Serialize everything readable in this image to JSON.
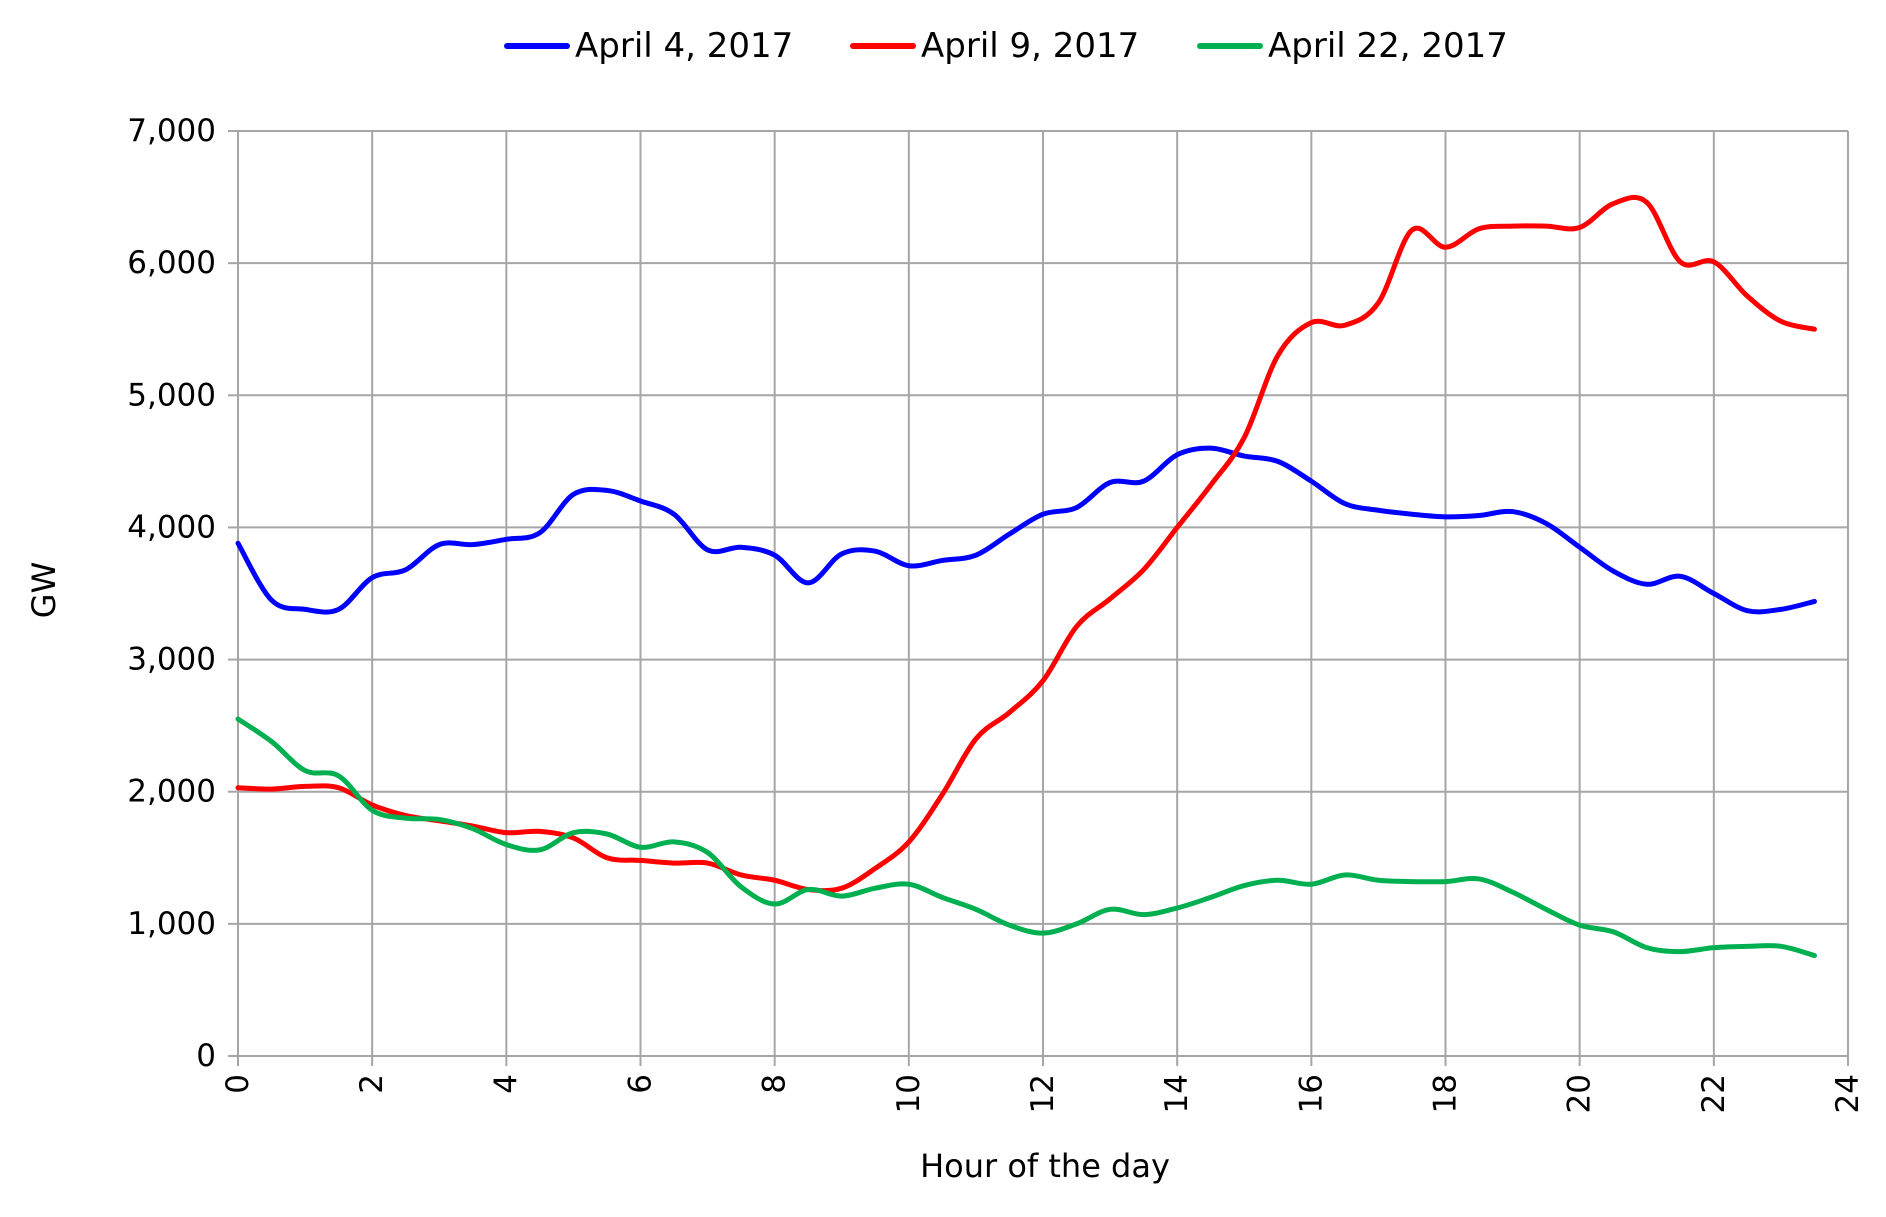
{
  "chart_data": {
    "type": "line",
    "title": "",
    "xlabel": "Hour of the day",
    "ylabel": "GW",
    "xlim": [
      0,
      24
    ],
    "ylim": [
      0,
      7000
    ],
    "x_ticks": [
      "0",
      "2",
      "4",
      "6",
      "8",
      "10",
      "12",
      "14",
      "16",
      "18",
      "20",
      "22",
      "24"
    ],
    "y_ticks": [
      "0",
      "1,000",
      "2,000",
      "3,000",
      "4,000",
      "5,000",
      "6,000",
      "7,000"
    ],
    "grid": true,
    "legend_position": "top",
    "x": [
      0,
      0.5,
      1,
      1.5,
      2,
      2.5,
      3,
      3.5,
      4,
      4.5,
      5,
      5.5,
      6,
      6.5,
      7,
      7.5,
      8,
      8.5,
      9,
      9.5,
      10,
      10.5,
      11,
      11.5,
      12,
      12.5,
      13,
      13.5,
      14,
      14.5,
      15,
      15.5,
      16,
      16.5,
      17,
      17.5,
      18,
      18.5,
      19,
      19.5,
      20,
      20.5,
      21,
      21.5,
      22,
      22.5,
      23,
      23.5
    ],
    "series": [
      {
        "name": "April 4, 2017",
        "color": "#0000ff",
        "values": [
          3880,
          3450,
          3380,
          3380,
          3620,
          3680,
          3870,
          3870,
          3910,
          3960,
          4250,
          4280,
          4200,
          4100,
          3830,
          3850,
          3790,
          3580,
          3800,
          3820,
          3710,
          3750,
          3790,
          3950,
          4100,
          4150,
          4340,
          4350,
          4550,
          4600,
          4540,
          4500,
          4350,
          4180,
          4130,
          4100,
          4080,
          4090,
          4120,
          4030,
          3850,
          3670,
          3570,
          3630,
          3500,
          3370,
          3380,
          3440
        ]
      },
      {
        "name": "April 9, 2017",
        "color": "#ff0000",
        "values": [
          2030,
          2020,
          2040,
          2030,
          1900,
          1820,
          1780,
          1740,
          1690,
          1700,
          1650,
          1500,
          1480,
          1460,
          1460,
          1370,
          1330,
          1260,
          1270,
          1420,
          1620,
          1980,
          2400,
          2600,
          2840,
          3250,
          3460,
          3680,
          4000,
          4320,
          4680,
          5300,
          5550,
          5530,
          5700,
          6250,
          6120,
          6260,
          6280,
          6280,
          6270,
          6450,
          6460,
          6010,
          6010,
          5750,
          5560,
          5500
        ]
      },
      {
        "name": "April 22, 2017",
        "color": "#00b050",
        "values": [
          2550,
          2380,
          2160,
          2120,
          1860,
          1800,
          1790,
          1720,
          1600,
          1560,
          1690,
          1680,
          1580,
          1620,
          1540,
          1280,
          1150,
          1260,
          1210,
          1270,
          1300,
          1200,
          1110,
          990,
          930,
          1000,
          1110,
          1070,
          1120,
          1200,
          1290,
          1330,
          1300,
          1370,
          1330,
          1320,
          1320,
          1340,
          1240,
          1110,
          990,
          940,
          820,
          790,
          820,
          830,
          830,
          760
        ]
      }
    ]
  }
}
